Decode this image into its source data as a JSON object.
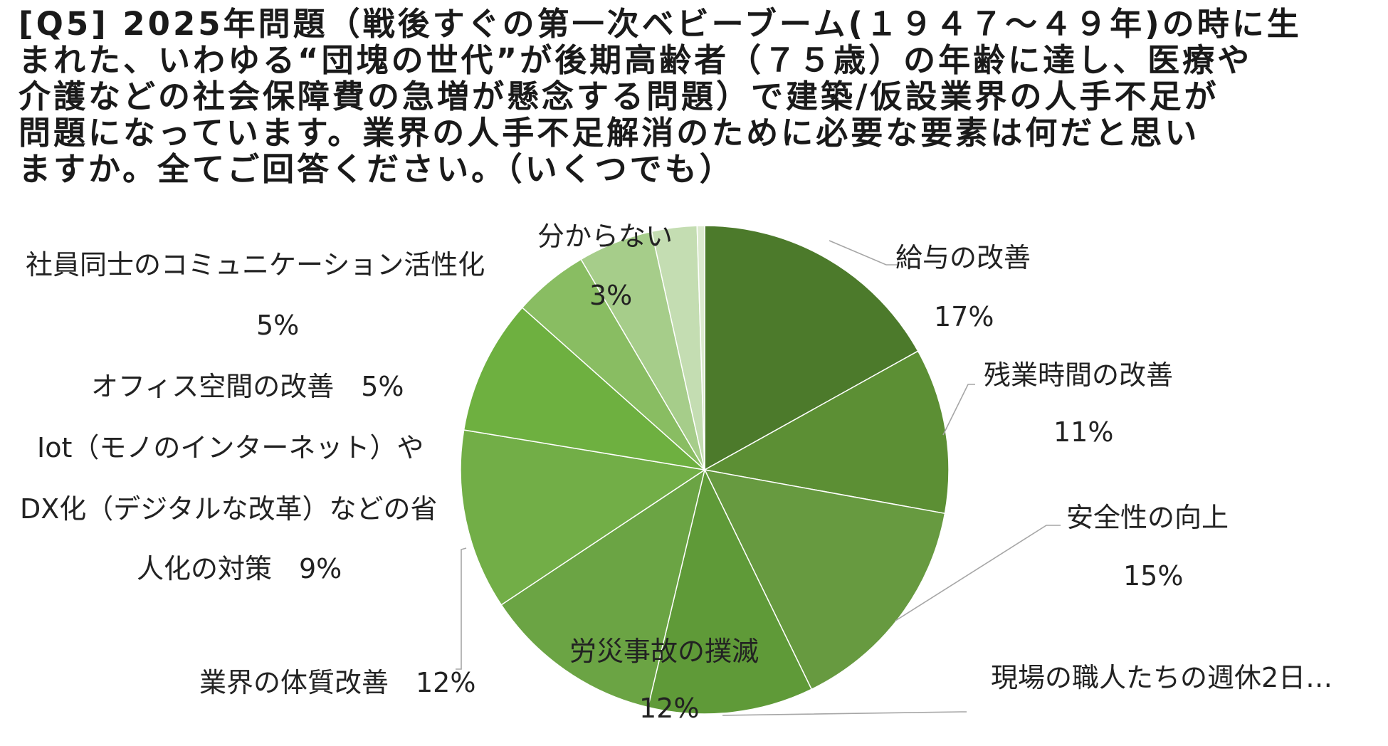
{
  "title_lines": [
    "[Q5] 2025年問題（戦後すぐの第一次ベビーブーム(１９４７～４９年)の時に生",
    "まれた、いわゆる“団塊の世代”が後期高齢者（７５歳）の年齢に達し、医療や",
    "介護などの社会保障費の急増が懸念する問題）で建築/仮設業界の人手不足が",
    "問題になっています。業界の人手不足解消のために必要な要素は何だと思い",
    "ますか。全てご回答ください。（いくつでも）"
  ],
  "chart_data": {
    "type": "pie",
    "start_angle_deg": 0,
    "direction": "clockwise",
    "slices": [
      {
        "name": "給与の改善",
        "value": 17,
        "pct_label": "17%",
        "color": "#4c7a2b"
      },
      {
        "name": "残業時間の改善",
        "value": 11,
        "pct_label": "11%",
        "color": "#5c8f34"
      },
      {
        "name": "安全性の向上",
        "value": 15,
        "pct_label": "15%",
        "color": "#679a40"
      },
      {
        "name": "現場の職人たちの週休2日…",
        "value": 11,
        "pct_label": "",
        "color": "#5f9a38"
      },
      {
        "name": "労災事故の撲滅",
        "value": 12,
        "pct_label": "12%",
        "color": "#6ba444"
      },
      {
        "name": "業界の体質改善",
        "value": 12,
        "pct_label": "12%",
        "color": "#72ae47"
      },
      {
        "name": "Iot（モノのインターネット）や DX化（デジタルな改革）などの省人化の対策",
        "value": 9,
        "pct_label": "9%",
        "color": "#6eb040"
      },
      {
        "name": "オフィス空間の改善",
        "value": 5,
        "pct_label": "5%",
        "color": "#89bd62"
      },
      {
        "name": "社員同士のコミュニケーション活性化",
        "value": 5,
        "pct_label": "5%",
        "color": "#a6cd8a"
      },
      {
        "name": "分からない",
        "value": 3,
        "pct_label": "3%",
        "color": "#c4ddb2"
      },
      {
        "name": "",
        "value": 0.5,
        "pct_label": "",
        "color": "#dceacf"
      }
    ]
  },
  "labels": {
    "kyuyo": {
      "name": "給与の改善",
      "pct": "17%"
    },
    "zangyo": {
      "name": "残業時間の改善",
      "pct": "11%"
    },
    "anzen": {
      "name": "安全性の向上",
      "pct": "15%"
    },
    "shukyu": {
      "name": "現場の職人たちの週休2日…"
    },
    "rousai": {
      "name": "労災事故の撲滅",
      "pct": "12%"
    },
    "taishitsu": {
      "text": "業界の体質改善　12%"
    },
    "iot": {
      "line1": "Iot（モノのインターネット）や",
      "line2": "DX化（デジタルな改革）などの省",
      "line3": "人化の対策　9%"
    },
    "office": {
      "text": "オフィス空間の改善　5%"
    },
    "comm": {
      "name": "社員同士のコミュニケーション活性化",
      "pct": "5%"
    },
    "wakaranai": {
      "name": "分からない",
      "pct": "3%"
    }
  }
}
